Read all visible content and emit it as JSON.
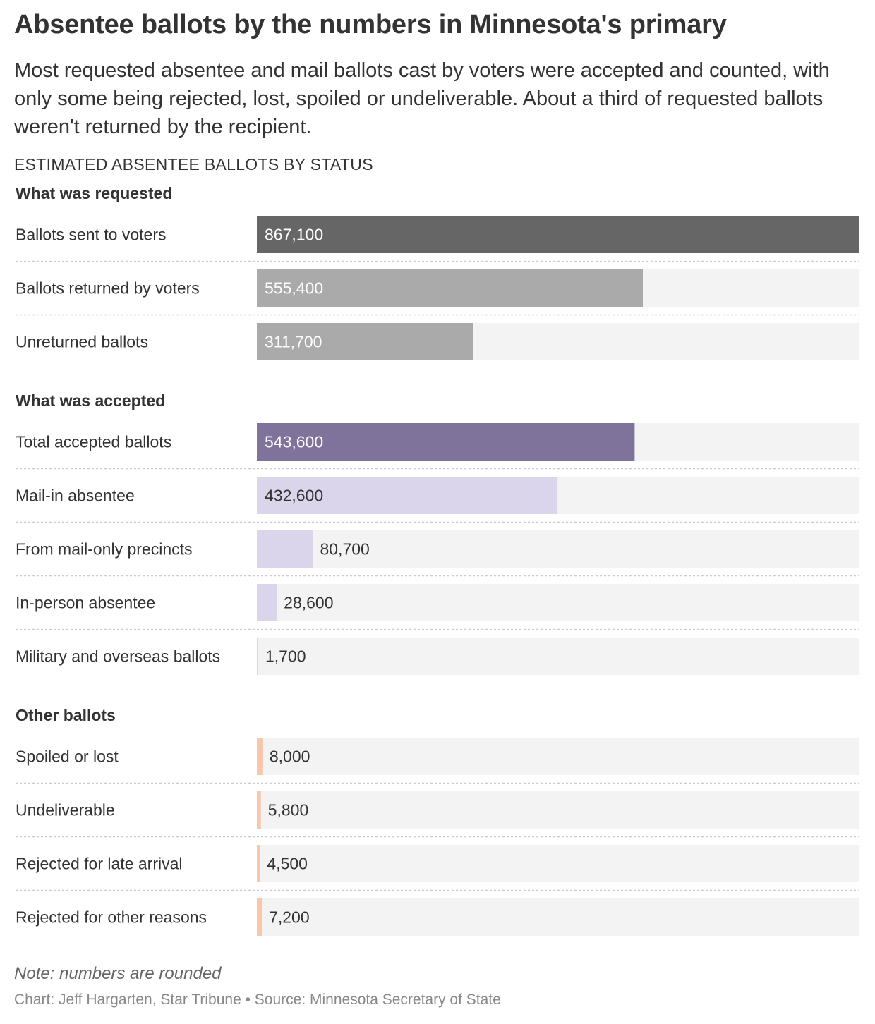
{
  "header": {
    "title": "Absentee ballots by the numbers in Minnesota's primary",
    "subtitle": "Most requested absentee and mail ballots cast by voters were accepted and counted, with only some being rejected, lost, spoiled or undeliverable. About a third of requested ballots weren't returned by the recipient.",
    "chart_label": "ESTIMATED ABSENTEE BALLOTS BY STATUS"
  },
  "chart_data": {
    "type": "bar",
    "orientation": "horizontal",
    "title": "ESTIMATED ABSENTEE BALLOTS BY STATUS",
    "xlim": [
      0,
      867100
    ],
    "grid": false,
    "groups": [
      {
        "name": "What was requested",
        "bars": [
          {
            "label": "Ballots sent to voters",
            "value": 867100,
            "display": "867,100",
            "color": "#666666",
            "text_color": "#ffffff"
          },
          {
            "label": "Ballots returned by voters",
            "value": 555400,
            "display": "555,400",
            "color": "#aaaaaa",
            "text_color": "#ffffff"
          },
          {
            "label": "Unreturned ballots",
            "value": 311700,
            "display": "311,700",
            "color": "#aaaaaa",
            "text_color": "#ffffff"
          }
        ]
      },
      {
        "name": "What was accepted",
        "bars": [
          {
            "label": "Total accepted ballots",
            "value": 543600,
            "display": "543,600",
            "color": "#7f739c",
            "text_color": "#ffffff"
          },
          {
            "label": "Mail-in absentee",
            "value": 432600,
            "display": "432,600",
            "color": "#dad5eb",
            "text_color": "#333333"
          },
          {
            "label": "From mail-only precincts",
            "value": 80700,
            "display": "80,700",
            "color": "#dad5eb",
            "text_color": "#333333"
          },
          {
            "label": "In-person absentee",
            "value": 28600,
            "display": "28,600",
            "color": "#dad5eb",
            "text_color": "#333333"
          },
          {
            "label": "Military and overseas ballots",
            "value": 1700,
            "display": "1,700",
            "color": "#dad5eb",
            "text_color": "#333333"
          }
        ]
      },
      {
        "name": "Other ballots",
        "bars": [
          {
            "label": "Spoiled or lost",
            "value": 8000,
            "display": "8,000",
            "color": "#f7c6ab",
            "text_color": "#333333"
          },
          {
            "label": "Undeliverable",
            "value": 5800,
            "display": "5,800",
            "color": "#f7c6ab",
            "text_color": "#333333"
          },
          {
            "label": "Rejected for late arrival",
            "value": 4500,
            "display": "4,500",
            "color": "#f7c6ab",
            "text_color": "#333333"
          },
          {
            "label": "Rejected for other reasons",
            "value": 7200,
            "display": "7,200",
            "color": "#f7c6ab",
            "text_color": "#333333"
          }
        ]
      }
    ],
    "track_color": "#f3f3f3"
  },
  "footer": {
    "note": "Note: numbers are rounded",
    "credit": "Chart: Jeff Hargarten, Star Tribune • Source: Minnesota Secretary of State"
  }
}
